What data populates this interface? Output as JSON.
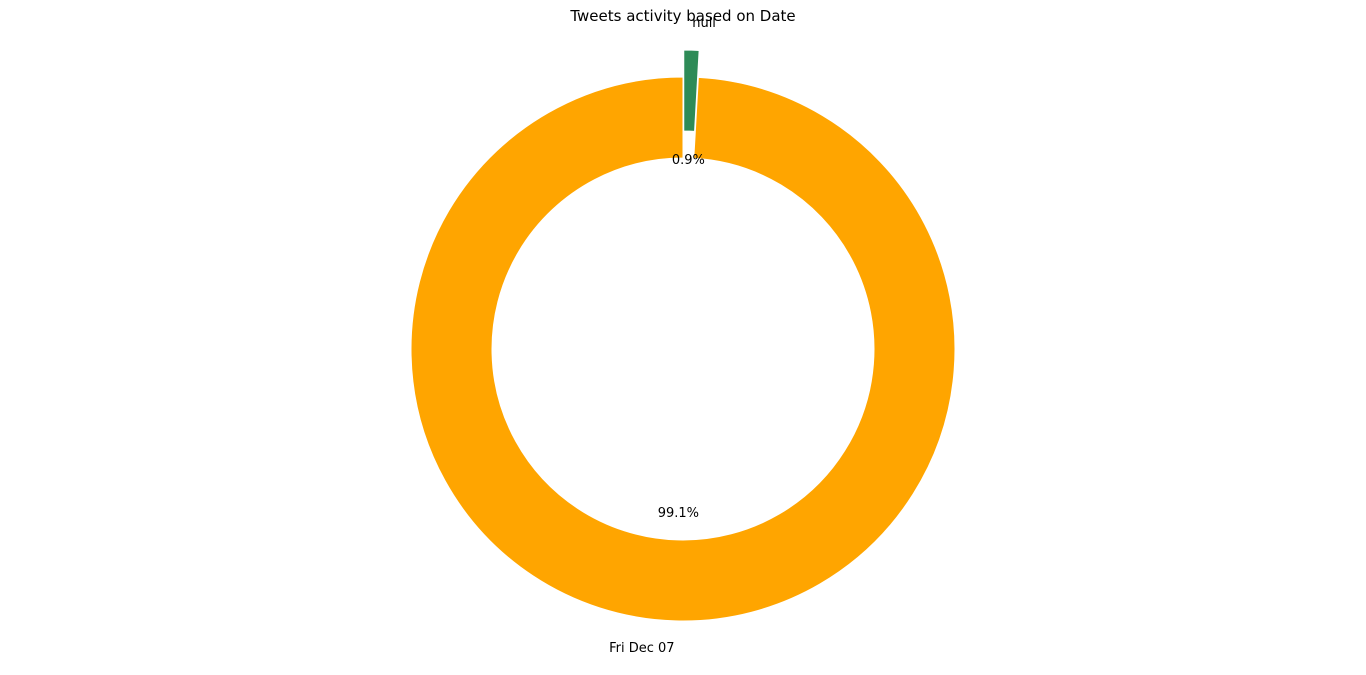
{
  "chart_data": {
    "type": "pie",
    "donut": true,
    "title": "Tweets activity based on Date",
    "labels": [
      "Fri Dec 07",
      "null"
    ],
    "values": [
      99.1,
      0.9
    ],
    "percent_labels": [
      "99.1%",
      "0.9%"
    ],
    "colors": [
      "#ffa500",
      "#2e8b57"
    ],
    "exploded": [
      false,
      true
    ],
    "legend": "none"
  }
}
